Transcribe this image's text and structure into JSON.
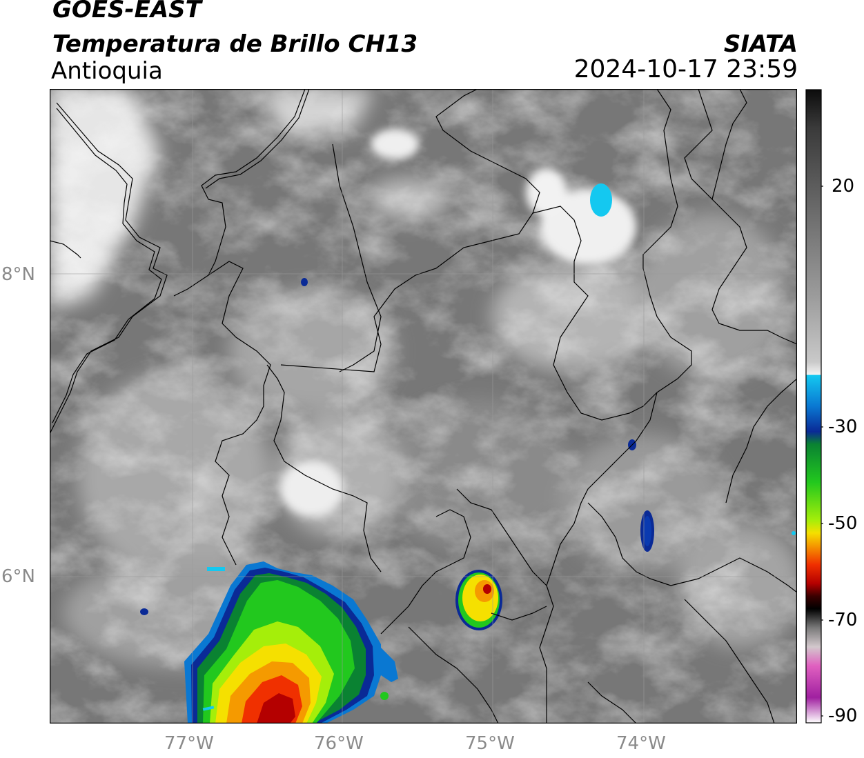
{
  "header": {
    "satellite": "GOES-EAST",
    "product": "Temperatura de Brillo CH13",
    "region": "Antioquia",
    "brand": "SIATA",
    "datetime": "2024-10-17 23:59"
  },
  "map": {
    "lat_labels": [
      "8°N",
      "6°N"
    ],
    "lon_labels": [
      "77°W",
      "76°W",
      "75°W",
      "74°W"
    ],
    "colors": {
      "coastline": "#000000",
      "border": "#000000",
      "gridline": "#9a9a9a"
    }
  },
  "colorbar": {
    "tick_labels": [
      "20",
      "-30",
      "-50",
      "-70",
      "-90"
    ],
    "stops": [
      {
        "c": "#0c0c0c"
      },
      {
        "c": "#3a3a3a"
      },
      {
        "c": "#6e6e6e"
      },
      {
        "c": "#9d9d9d"
      },
      {
        "c": "#c9c9c9"
      },
      {
        "c": "#f4f4f4"
      },
      {
        "c": "#14c8f0"
      },
      {
        "c": "#0a78d2"
      },
      {
        "c": "#0a2a96"
      },
      {
        "c": "#0a8232"
      },
      {
        "c": "#22c81e"
      },
      {
        "c": "#a5ee0a"
      },
      {
        "c": "#f5e000"
      },
      {
        "c": "#f59a00"
      },
      {
        "c": "#f03000"
      },
      {
        "c": "#b40000"
      },
      {
        "c": "#3a0000"
      },
      {
        "c": "#000000"
      },
      {
        "c": "#7a7a7a"
      },
      {
        "c": "#d2c8cc"
      },
      {
        "c": "#e060c0"
      },
      {
        "c": "#a020a0"
      },
      {
        "c": "#ffffff"
      }
    ]
  }
}
